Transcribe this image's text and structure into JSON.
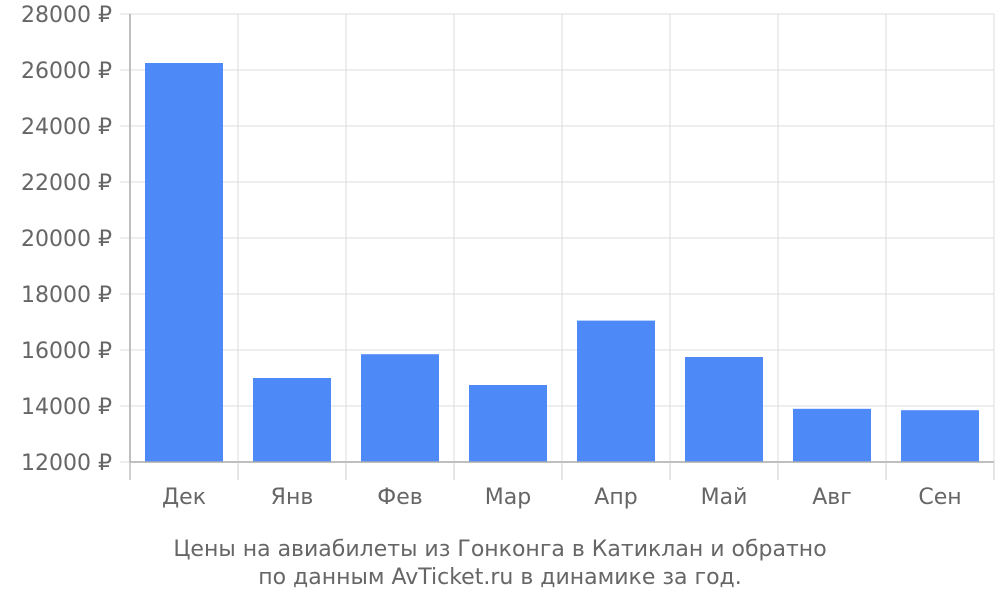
{
  "chart_data": {
    "type": "bar",
    "categories": [
      "Дек",
      "Янв",
      "Фев",
      "Мар",
      "Апр",
      "Май",
      "Авг",
      "Сен"
    ],
    "values": [
      26250,
      15000,
      15850,
      14750,
      17050,
      15750,
      13900,
      13850
    ],
    "ylim": [
      12000,
      28000
    ],
    "yticks": [
      12000,
      14000,
      16000,
      18000,
      20000,
      22000,
      24000,
      26000,
      28000
    ],
    "y_tick_suffix": " ₽",
    "grid": true,
    "bar_color": "#4d8af8",
    "caption_lines": [
      "Цены на авиабилеты из Гонконга в Катиклан и обратно",
      "по данным AvTicket.ru в динамике за год."
    ]
  }
}
